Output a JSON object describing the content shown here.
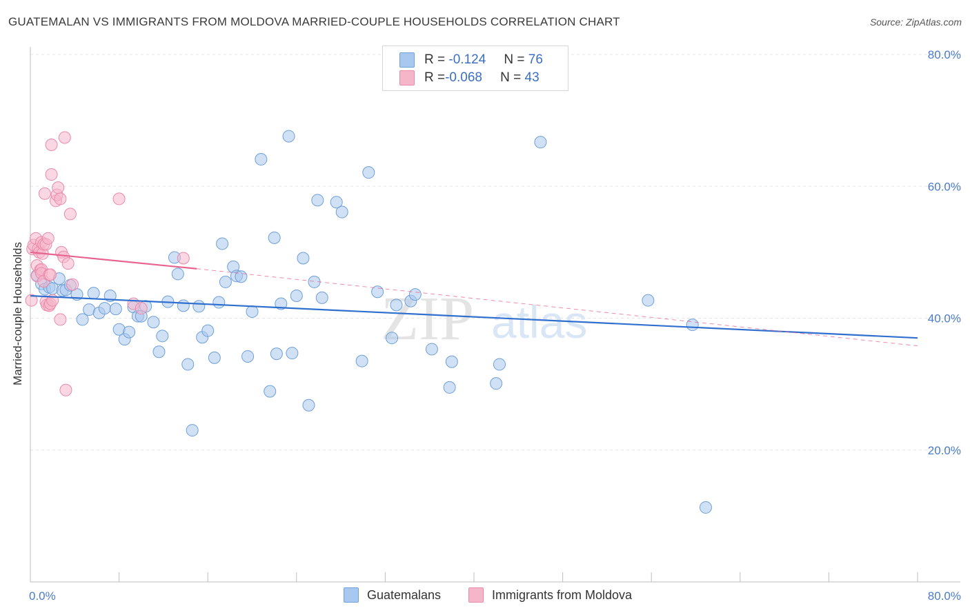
{
  "title": "GUATEMALAN VS IMMIGRANTS FROM MOLDOVA MARRIED-COUPLE HOUSEHOLDS CORRELATION CHART",
  "source": "Source: ZipAtlas.com",
  "watermark": {
    "zip": "ZIP",
    "atlas": "atlas"
  },
  "legend": {
    "series1": {
      "r_label": "R = ",
      "r_value": "-0.124",
      "n_label": "N = ",
      "n_value": "76"
    },
    "series2": {
      "r_label": "R = ",
      "r_value": "-0.068",
      "n_label": "N = ",
      "n_value": "43"
    }
  },
  "colors": {
    "blue_fill": "#a9c8ef",
    "blue_stroke": "#6e9fd9",
    "blue_line": "#2f6fce",
    "pink_fill": "#f6b6ca",
    "pink_stroke": "#ea8aa8",
    "pink_line": "#e8638f",
    "grid": "#e3e3e3",
    "axis": "#bdbdbd",
    "tick_text": "#4a7bc8"
  },
  "chart_data": {
    "type": "scatter",
    "title": "GUATEMALAN VS IMMIGRANTS FROM MOLDOVA MARRIED-COUPLE HOUSEHOLDS CORRELATION CHART",
    "xlabel": "",
    "ylabel": "Married-couple Households",
    "xlim": [
      0,
      80
    ],
    "ylim": [
      0,
      80
    ],
    "x_tick_labels": [
      "0.0%",
      "80.0%"
    ],
    "y_tick_labels": [
      "20.0%",
      "40.0%",
      "60.0%",
      "80.0%"
    ],
    "y_ticks": [
      20,
      40,
      60,
      80
    ],
    "grid": true,
    "legend_position": "bottom",
    "series": [
      {
        "name": "Guatemalans",
        "color": "blue",
        "points": [
          [
            0.6,
            46.5
          ],
          [
            1.0,
            45.2
          ],
          [
            1.3,
            44.4
          ],
          [
            1.7,
            44.7
          ],
          [
            2.0,
            44.5
          ],
          [
            2.6,
            46.0
          ],
          [
            2.9,
            44.2
          ],
          [
            3.2,
            44.3
          ],
          [
            3.6,
            45.0
          ],
          [
            4.2,
            43.6
          ],
          [
            4.7,
            39.8
          ],
          [
            5.3,
            41.3
          ],
          [
            5.7,
            43.8
          ],
          [
            6.2,
            40.8
          ],
          [
            6.7,
            41.5
          ],
          [
            7.2,
            43.4
          ],
          [
            7.7,
            41.4
          ],
          [
            8.0,
            38.3
          ],
          [
            8.5,
            36.8
          ],
          [
            8.9,
            37.9
          ],
          [
            9.3,
            41.7
          ],
          [
            9.7,
            40.3
          ],
          [
            10.0,
            40.3
          ],
          [
            10.4,
            41.8
          ],
          [
            11.1,
            39.4
          ],
          [
            11.6,
            34.9
          ],
          [
            11.9,
            37.3
          ],
          [
            12.4,
            42.5
          ],
          [
            13.0,
            49.2
          ],
          [
            13.3,
            46.7
          ],
          [
            13.8,
            41.9
          ],
          [
            14.2,
            33.0
          ],
          [
            14.6,
            23.0
          ],
          [
            15.2,
            41.8
          ],
          [
            15.5,
            37.1
          ],
          [
            16.0,
            38.1
          ],
          [
            16.6,
            34.0
          ],
          [
            17.0,
            42.4
          ],
          [
            17.3,
            51.3
          ],
          [
            17.6,
            45.5
          ],
          [
            18.3,
            47.8
          ],
          [
            18.6,
            46.4
          ],
          [
            19.0,
            46.3
          ],
          [
            19.6,
            34.2
          ],
          [
            20.0,
            41.0
          ],
          [
            20.8,
            64.1
          ],
          [
            21.6,
            28.9
          ],
          [
            22.0,
            52.2
          ],
          [
            22.2,
            34.6
          ],
          [
            22.6,
            42.2
          ],
          [
            23.3,
            67.6
          ],
          [
            23.6,
            34.7
          ],
          [
            24.0,
            43.4
          ],
          [
            24.6,
            49.1
          ],
          [
            25.1,
            26.8
          ],
          [
            25.6,
            45.5
          ],
          [
            25.9,
            57.9
          ],
          [
            26.3,
            43.1
          ],
          [
            27.6,
            57.6
          ],
          [
            28.1,
            56.1
          ],
          [
            29.9,
            33.5
          ],
          [
            30.5,
            62.1
          ],
          [
            31.3,
            44.0
          ],
          [
            32.6,
            37.0
          ],
          [
            33.0,
            42.0
          ],
          [
            34.3,
            42.6
          ],
          [
            34.7,
            43.6
          ],
          [
            36.2,
            35.3
          ],
          [
            37.8,
            29.5
          ],
          [
            38.0,
            33.4
          ],
          [
            42.0,
            30.1
          ],
          [
            42.3,
            33.0
          ],
          [
            46.0,
            66.7
          ],
          [
            55.7,
            42.7
          ],
          [
            59.7,
            39.0
          ],
          [
            60.9,
            11.3
          ]
        ]
      },
      {
        "name": "Immigrants from Moldova",
        "color": "pink",
        "points": [
          [
            0.1,
            42.7
          ],
          [
            0.2,
            50.5
          ],
          [
            0.3,
            51.1
          ],
          [
            0.5,
            52.1
          ],
          [
            0.6,
            48.0
          ],
          [
            0.6,
            46.4
          ],
          [
            0.7,
            50.5
          ],
          [
            0.8,
            50.0
          ],
          [
            0.9,
            47.3
          ],
          [
            1.0,
            47.4
          ],
          [
            1.0,
            51.5
          ],
          [
            1.0,
            46.8
          ],
          [
            1.1,
            49.8
          ],
          [
            1.2,
            45.6
          ],
          [
            1.2,
            51.2
          ],
          [
            1.3,
            58.9
          ],
          [
            1.4,
            51.2
          ],
          [
            1.4,
            42.5
          ],
          [
            1.5,
            42.0
          ],
          [
            1.6,
            52.1
          ],
          [
            1.7,
            41.9
          ],
          [
            1.7,
            46.6
          ],
          [
            1.8,
            46.6
          ],
          [
            1.8,
            42.2
          ],
          [
            1.9,
            66.3
          ],
          [
            1.9,
            61.8
          ],
          [
            2.0,
            42.7
          ],
          [
            2.3,
            57.8
          ],
          [
            2.4,
            58.7
          ],
          [
            2.5,
            59.8
          ],
          [
            2.7,
            39.8
          ],
          [
            2.7,
            58.1
          ],
          [
            2.8,
            50.0
          ],
          [
            3.0,
            49.3
          ],
          [
            3.1,
            67.4
          ],
          [
            3.2,
            29.1
          ],
          [
            3.4,
            48.3
          ],
          [
            3.6,
            55.8
          ],
          [
            3.8,
            45.1
          ],
          [
            8.0,
            58.1
          ],
          [
            9.3,
            42.2
          ],
          [
            10.0,
            41.5
          ],
          [
            13.8,
            49.1
          ]
        ]
      }
    ],
    "trendlines": [
      {
        "series": "Guatemalans",
        "x": [
          0,
          80
        ],
        "y": [
          43.4,
          37.0
        ],
        "style": "solid"
      },
      {
        "series": "Immigrants from Moldova",
        "x": [
          0,
          15
        ],
        "y": [
          50.0,
          47.5
        ],
        "style": "solid"
      },
      {
        "series": "Immigrants from Moldova",
        "x": [
          15,
          80
        ],
        "y": [
          47.5,
          35.8
        ],
        "style": "dashed"
      }
    ]
  }
}
